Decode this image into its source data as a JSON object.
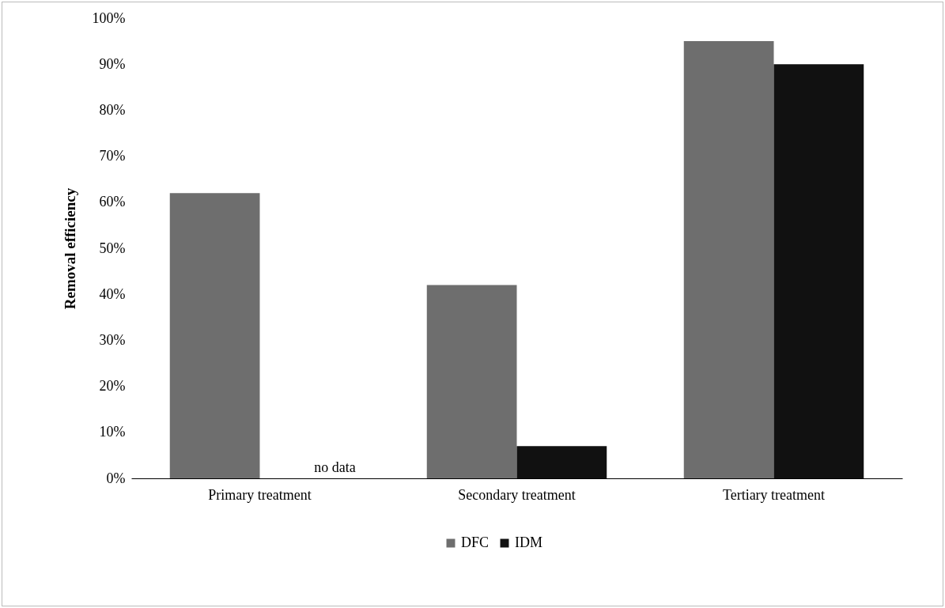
{
  "chart_data": {
    "type": "bar",
    "ylabel": "Removal efficiency",
    "categories": [
      "Primary treatment",
      "Secondary treatment",
      "Tertiary treatment"
    ],
    "series": [
      {
        "name": "DFC",
        "color": "#6e6e6e",
        "values": [
          62,
          42,
          95
        ]
      },
      {
        "name": "IDM",
        "color": "#111111",
        "values": [
          null,
          7,
          90
        ]
      }
    ],
    "ylim": [
      0,
      100
    ],
    "yticks": [
      {
        "value": 0,
        "label": "0%"
      },
      {
        "value": 10,
        "label": "10%"
      },
      {
        "value": 20,
        "label": "20%"
      },
      {
        "value": 30,
        "label": "30%"
      },
      {
        "value": 40,
        "label": "40%"
      },
      {
        "value": 50,
        "label": "50%"
      },
      {
        "value": 60,
        "label": "60%"
      },
      {
        "value": 70,
        "label": "70%"
      },
      {
        "value": 80,
        "label": "80%"
      },
      {
        "value": 90,
        "label": "90%"
      },
      {
        "value": 100,
        "label": "100%"
      }
    ],
    "annotations": [
      "no data"
    ],
    "grid": false,
    "legend": "bottom"
  }
}
